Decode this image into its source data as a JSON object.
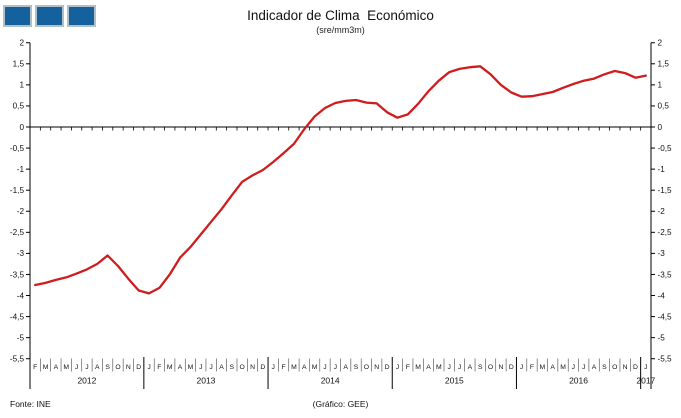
{
  "header": {
    "title": "Indicador de Clima  Económico",
    "subtitle": "(sre/mm3m)"
  },
  "footer": {
    "source": "Fonte: INE",
    "credit": "(Gráfico: GEE)"
  },
  "logo": {
    "name": "three-blue-squares-logo",
    "square_count": 3,
    "fill_color": "#15619e",
    "border_color": "#b3bfc7"
  },
  "chart_data": {
    "type": "line",
    "title": "Indicador de Clima  Económico",
    "subtitle": "(sre/mm3m)",
    "xlabel": "",
    "ylabel": "",
    "ylim": [
      -5.5,
      2
    ],
    "ytick_step": 0.5,
    "decimal_separator": ",",
    "grid": false,
    "legend": false,
    "zero_line": true,
    "line_color": "#cf1d1d",
    "axis_color": "#000000",
    "years": [
      {
        "year": "2012",
        "months": [
          "F",
          "M",
          "A",
          "M",
          "J",
          "J",
          "A",
          "S",
          "O",
          "N",
          "D"
        ],
        "values": [
          -3.75,
          -3.7,
          -3.63,
          -3.57,
          -3.48,
          -3.38,
          -3.25,
          -3.05,
          -3.3,
          -3.6,
          -3.88
        ]
      },
      {
        "year": "2013",
        "months": [
          "J",
          "F",
          "M",
          "A",
          "M",
          "J",
          "J",
          "A",
          "S",
          "O",
          "N",
          "D"
        ],
        "values": [
          -3.95,
          -3.82,
          -3.5,
          -3.1,
          -2.85,
          -2.55,
          -2.25,
          -1.95,
          -1.62,
          -1.3,
          -1.15,
          -1.02
        ]
      },
      {
        "year": "2014",
        "months": [
          "J",
          "F",
          "M",
          "A",
          "M",
          "J",
          "J",
          "A",
          "S",
          "O",
          "N",
          "D"
        ],
        "values": [
          -0.83,
          -0.62,
          -0.4,
          -0.05,
          0.25,
          0.45,
          0.57,
          0.62,
          0.64,
          0.58,
          0.56,
          0.35
        ]
      },
      {
        "year": "2015",
        "months": [
          "J",
          "F",
          "M",
          "A",
          "M",
          "J",
          "J",
          "A",
          "S",
          "O",
          "N",
          "D"
        ],
        "values": [
          0.22,
          0.3,
          0.55,
          0.85,
          1.1,
          1.3,
          1.38,
          1.42,
          1.44,
          1.25,
          1.0,
          0.82
        ]
      },
      {
        "year": "2016",
        "months": [
          "J",
          "F",
          "M",
          "A",
          "M",
          "J",
          "J",
          "A",
          "S",
          "O",
          "N",
          "D"
        ],
        "values": [
          0.72,
          0.73,
          0.78,
          0.83,
          0.93,
          1.02,
          1.1,
          1.15,
          1.25,
          1.33,
          1.28,
          1.17
        ]
      },
      {
        "year": "2017",
        "months": [
          "J"
        ],
        "values": [
          1.22
        ]
      }
    ]
  }
}
